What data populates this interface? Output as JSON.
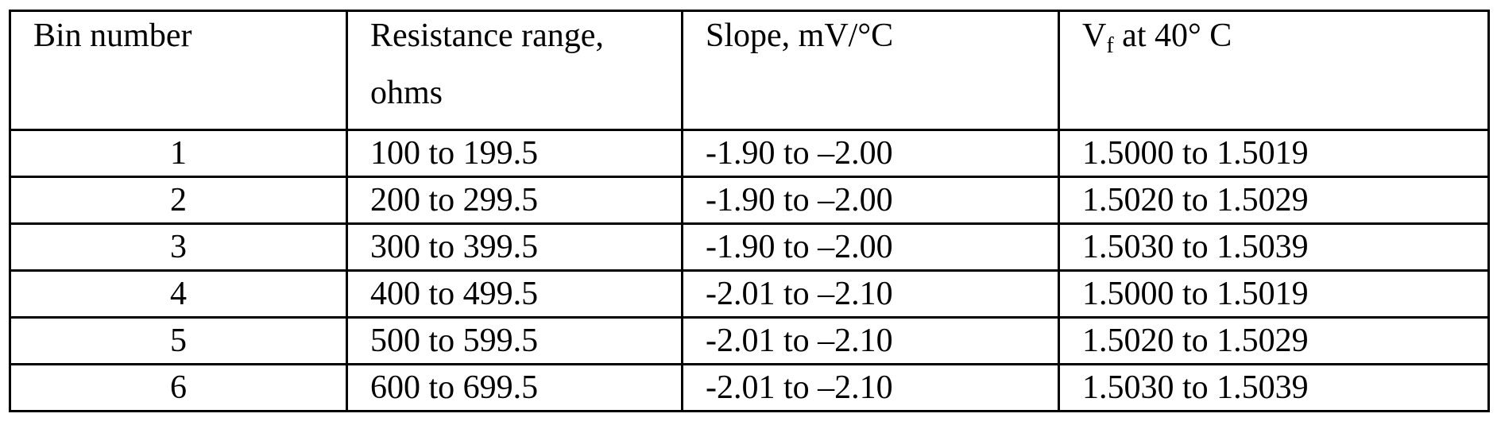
{
  "table": {
    "headers": {
      "bin": "Bin number",
      "resistance_line1": "Resistance range,",
      "resistance_line2": "ohms",
      "slope": "Slope, mV/°C",
      "vf_symbol": "V",
      "vf_subscript": "f",
      "vf_rest": " at 40° C"
    },
    "rows": [
      {
        "bin": "1",
        "resistance": "100 to 199.5",
        "slope": "-1.90 to –2.00",
        "vf": "1.5000 to 1.5019"
      },
      {
        "bin": "2",
        "resistance": "200 to 299.5",
        "slope": "-1.90 to –2.00",
        "vf": "1.5020 to 1.5029"
      },
      {
        "bin": "3",
        "resistance": "300 to 399.5",
        "slope": "-1.90 to –2.00",
        "vf": "1.5030 to 1.5039"
      },
      {
        "bin": "4",
        "resistance": "400 to 499.5",
        "slope": "-2.01 to –2.10",
        "vf": "1.5000 to 1.5019"
      },
      {
        "bin": "5",
        "resistance": "500 to 599.5",
        "slope": "-2.01 to –2.10",
        "vf": "1.5020 to 1.5029"
      },
      {
        "bin": "6",
        "resistance": "600 to 699.5",
        "slope": "-2.01 to –2.10",
        "vf": "1.5030 to 1.5039"
      }
    ]
  }
}
